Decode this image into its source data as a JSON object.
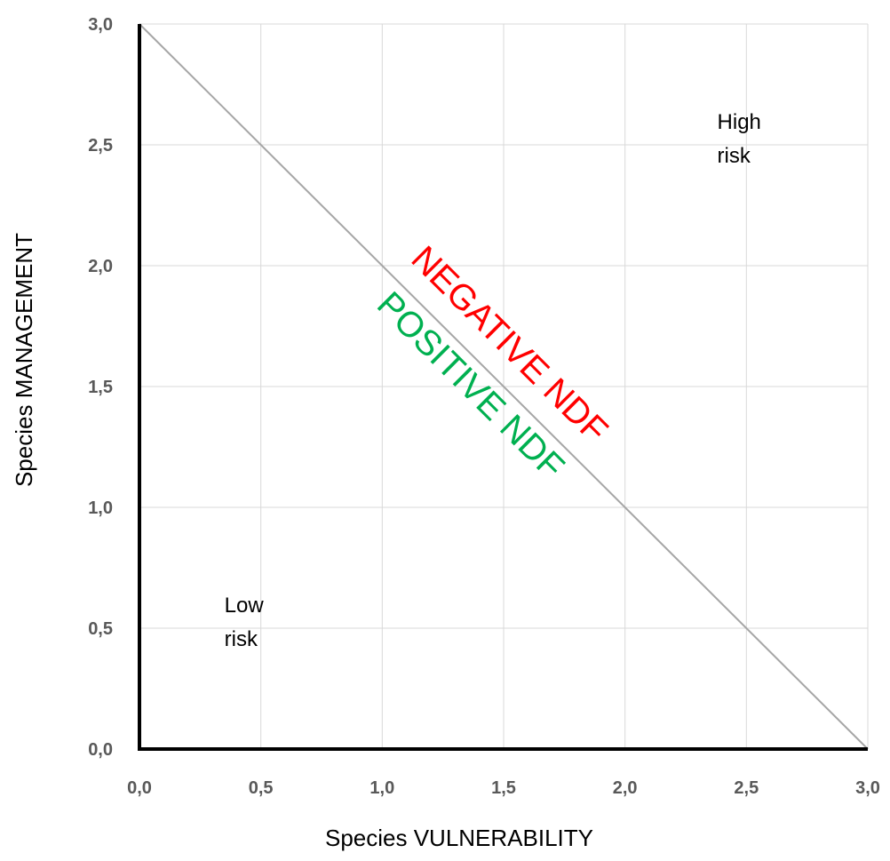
{
  "chart_data": {
    "type": "line",
    "xlabel": "Species VULNERABILITY",
    "ylabel": "Species MANAGEMENT",
    "xlim": [
      0,
      3
    ],
    "ylim": [
      0,
      3
    ],
    "x_ticks": [
      "0,0",
      "0,5",
      "1,0",
      "1,5",
      "2,0",
      "2,5",
      "3,0"
    ],
    "y_ticks": [
      "0,0",
      "0,5",
      "1,0",
      "1,5",
      "2,0",
      "2,5",
      "3,0"
    ],
    "grid": true,
    "series": [
      {
        "x": [
          0,
          3
        ],
        "y": [
          3,
          0
        ],
        "color": "#a6a6a6"
      }
    ],
    "annotations": {
      "high_risk": {
        "line1": "High",
        "line2": "risk",
        "x": 2.38,
        "y": 2.53
      },
      "low_risk": {
        "line1": "Low",
        "line2": "risk",
        "x": 0.35,
        "y": 0.53
      },
      "negative": {
        "text": "NEGATIVE NDF",
        "color": "#ff0000",
        "x": 1.49,
        "y": 1.64
      },
      "positive": {
        "text": "POSITIVE NDF",
        "color": "#00b050",
        "x": 1.33,
        "y": 1.47
      }
    }
  }
}
